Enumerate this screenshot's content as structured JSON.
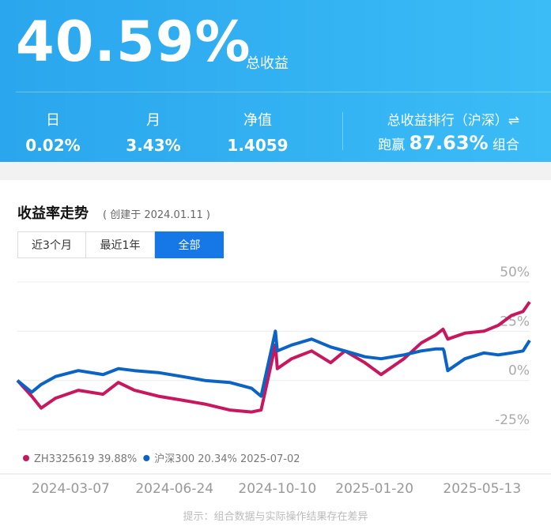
{
  "header": {
    "total_return": "40.59%",
    "total_label": "总收益",
    "stats": [
      {
        "label": "日",
        "value": "0.02%"
      },
      {
        "label": "月",
        "value": "3.43%"
      },
      {
        "label": "净值",
        "value": "1.4059"
      }
    ],
    "rank": {
      "title": "总收益排行（沪深）⇌",
      "prefix": "跑赢",
      "value": "87.63%",
      "suffix": "组合"
    }
  },
  "card": {
    "title": "收益率走势",
    "created": "( 创建于 2024.01.11 )",
    "tabs": [
      "近3个月",
      "最近1年",
      "全部"
    ]
  },
  "chart_data": {
    "type": "line",
    "x": [
      "2024-01-11",
      "2024-01-26",
      "2024-02-05",
      "2024-02-20",
      "2024-03-15",
      "2024-04-10",
      "2024-04-26",
      "2024-05-13",
      "2024-06-07",
      "2024-07-02",
      "2024-07-26",
      "2024-08-21",
      "2024-09-13",
      "2024-09-23",
      "2024-10-08",
      "2024-10-10",
      "2024-10-25",
      "2024-11-15",
      "2024-12-05",
      "2024-12-20",
      "2025-01-10",
      "2025-01-27",
      "2025-02-20",
      "2025-03-10",
      "2025-03-25",
      "2025-04-02",
      "2025-04-03",
      "2025-04-07",
      "2025-04-25",
      "2025-05-15",
      "2025-05-30",
      "2025-06-13",
      "2025-06-25",
      "2025-07-02"
    ],
    "series": [
      {
        "name": "ZH3325619",
        "color": "#c8175d",
        "values": [
          0,
          -8,
          -14,
          -9,
          -5,
          -7,
          -1,
          -5,
          -8,
          -10,
          -12,
          -15,
          -16,
          -15,
          18,
          6,
          11,
          15,
          9,
          15,
          9,
          3,
          11,
          19,
          23,
          26,
          25,
          21,
          24,
          25,
          28,
          33,
          35,
          39.88
        ]
      },
      {
        "name": "沪深300",
        "color": "#0b63c5",
        "values": [
          0,
          -6,
          -2,
          2,
          5,
          3,
          6,
          5,
          4,
          2,
          0,
          -1,
          -4,
          -8,
          25,
          15,
          18,
          21,
          17,
          15,
          12,
          11,
          13,
          15,
          16,
          16,
          15,
          5,
          11,
          14,
          13,
          14,
          15,
          20.34
        ]
      }
    ],
    "legend_labels": [
      "39.88%",
      "20.34%"
    ],
    "legend_date": "2025-07-02",
    "xlim": [
      "2024-01-11",
      "2025-07-02"
    ],
    "xticks": [
      "2024-03-07",
      "2024-06-24",
      "2024-10-10",
      "2025-01-20",
      "2025-05-13"
    ],
    "ylim": [
      -25,
      50
    ],
    "yticks": [
      {
        "value": 50,
        "label": "50%"
      },
      {
        "value": 25,
        "label": "25%"
      },
      {
        "value": 0,
        "label": "0%"
      },
      {
        "value": -25,
        "label": "-25%"
      }
    ],
    "grid": true
  },
  "footer_note": "提示：组合数据与实际操作结果存在差异"
}
